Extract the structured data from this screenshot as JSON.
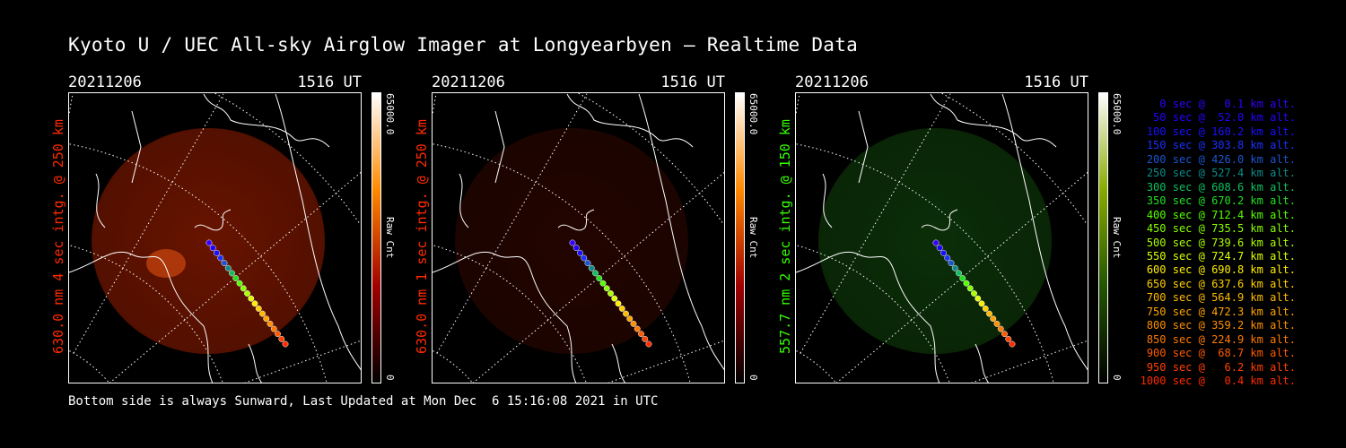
{
  "title": "Kyoto U / UEC All-sky Airglow Imager at Longyearbyen — Realtime Data",
  "panels": [
    {
      "date": "20211206",
      "time": "1516 UT",
      "side_label": "630.0 nm 4 sec intg. @ 250 km",
      "side_color": "#ff2a00",
      "cbar_max": "65000.0",
      "cbar_unit": "Raw Cnt",
      "cbar_min": "0",
      "glow": "#8a1a00",
      "glow_opacity": 0.75,
      "cbar": [
        "#ffffff",
        "#ff8a00",
        "#a00000",
        "#000000"
      ]
    },
    {
      "date": "20211206",
      "time": "1516 UT",
      "side_label": "630.0 nm 1 sec intg. @ 250 km",
      "side_color": "#ff2a00",
      "cbar_max": "65000.0",
      "cbar_unit": "Raw Cnt",
      "cbar_min": "0",
      "glow": "#3a0800",
      "glow_opacity": 0.6,
      "cbar": [
        "#ffffff",
        "#ff8a00",
        "#a00000",
        "#000000"
      ]
    },
    {
      "date": "20211206",
      "time": "1516 UT",
      "side_label": "557.7 nm 2 sec intg. @ 150 km",
      "side_color": "#33ff00",
      "cbar_max": "65000.0",
      "cbar_unit": "Raw Cnt",
      "cbar_min": "0",
      "glow": "#0e3a0a",
      "glow_opacity": 0.8,
      "cbar": [
        "#ffffff",
        "#88aa00",
        "#225500",
        "#000000"
      ]
    }
  ],
  "legend": [
    {
      "t": "0 sec @   0.1 km alt.",
      "c": "#3300ff"
    },
    {
      "t": "50 sec @  52.0 km alt.",
      "c": "#2200ff"
    },
    {
      "t": "100 sec @ 160.2 km alt.",
      "c": "#1a10ff"
    },
    {
      "t": "150 sec @ 303.8 km alt.",
      "c": "#1a30ff"
    },
    {
      "t": "200 sec @ 426.0 km alt.",
      "c": "#1a55d0"
    },
    {
      "t": "250 sec @ 527.4 km alt.",
      "c": "#0f8a8a"
    },
    {
      "t": "300 sec @ 608.6 km alt.",
      "c": "#10c060"
    },
    {
      "t": "350 sec @ 670.2 km alt.",
      "c": "#20e020"
    },
    {
      "t": "400 sec @ 712.4 km alt.",
      "c": "#55ff00"
    },
    {
      "t": "450 sec @ 735.5 km alt.",
      "c": "#88ff00"
    },
    {
      "t": "500 sec @ 739.6 km alt.",
      "c": "#aaff00"
    },
    {
      "t": "550 sec @ 724.7 km alt.",
      "c": "#ddff00"
    },
    {
      "t": "600 sec @ 690.8 km alt.",
      "c": "#ffee00"
    },
    {
      "t": "650 sec @ 637.6 km alt.",
      "c": "#ffd000"
    },
    {
      "t": "700 sec @ 564.9 km alt.",
      "c": "#ffbb00"
    },
    {
      "t": "750 sec @ 472.3 km alt.",
      "c": "#ffa500"
    },
    {
      "t": "800 sec @ 359.2 km alt.",
      "c": "#ff9000"
    },
    {
      "t": "850 sec @ 224.9 km alt.",
      "c": "#ff7a00"
    },
    {
      "t": "900 sec @  68.7 km alt.",
      "c": "#ff5a00"
    },
    {
      "t": "950 sec @   6.2 km alt.",
      "c": "#ff4000"
    },
    {
      "t": "1000 sec @   0.4 km alt.",
      "c": "#ff2a00"
    }
  ],
  "footer": "Bottom side is always Sunward, Last Updated at Mon Dec  6 15:16:08 2021 in UTC"
}
